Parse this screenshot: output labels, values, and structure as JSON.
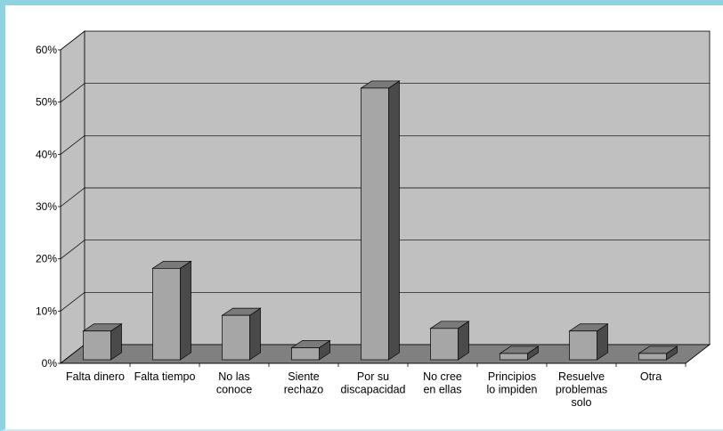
{
  "chart_data": {
    "type": "bar",
    "categories": [
      [
        "Falta dinero"
      ],
      [
        "Falta tiempo"
      ],
      [
        "No las",
        "conoce"
      ],
      [
        "Siente",
        "rechazo"
      ],
      [
        "Por su",
        "discapacidad"
      ],
      [
        "No cree",
        "en ellas"
      ],
      [
        "Principios",
        "lo impiden"
      ],
      [
        "Resuelve",
        "problemas",
        "solo"
      ],
      [
        "Otra"
      ]
    ],
    "values": [
      5.5,
      17.5,
      8.5,
      2.3,
      52,
      6,
      1.2,
      5.5,
      1.2
    ],
    "ylim": [
      0,
      60
    ],
    "yticks": [
      "0%",
      "10%",
      "20%",
      "30%",
      "40%",
      "50%",
      "60%"
    ],
    "grid": true,
    "three_d": true,
    "colors": {
      "wall": "#c0c0c0",
      "floor": "#808080",
      "bar_front": "#a6a6a6",
      "bar_top": "#7a7a7a",
      "bar_side": "#4a4a4a",
      "frame": "#8fd3e3"
    }
  }
}
